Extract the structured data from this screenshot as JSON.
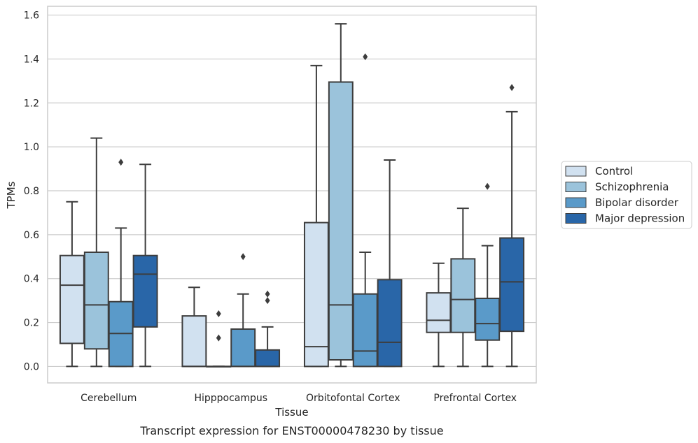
{
  "caption": "Transcript expression for ENST00000478230 by tissue",
  "chart_data": {
    "type": "box",
    "title": "",
    "xlabel": "Tissue",
    "ylabel": "TPMs",
    "ylim": [
      -0.075,
      1.64
    ],
    "yticks": [
      0.0,
      0.2,
      0.4,
      0.6,
      0.8,
      1.0,
      1.2,
      1.4,
      1.6
    ],
    "ytick_labels": [
      "0.0",
      "0.2",
      "0.4",
      "0.6",
      "0.8",
      "1.0",
      "1.2",
      "1.4",
      "1.6"
    ],
    "grid": "horizontal",
    "legend_position": "right",
    "categories": [
      "Cerebellum",
      "Hipppocampus",
      "Orbitofontal Cortex",
      "Prefrontal Cortex"
    ],
    "series": [
      {
        "name": "Control",
        "color": "#d1e1f0",
        "boxes": [
          {
            "q1": 0.105,
            "median": 0.37,
            "q3": 0.505,
            "whisker_low": 0.0,
            "whisker_high": 0.75,
            "outliers": []
          },
          {
            "q1": 0.0,
            "median": 0.0,
            "q3": 0.23,
            "whisker_low": 0.0,
            "whisker_high": 0.36,
            "outliers": []
          },
          {
            "q1": 0.0,
            "median": 0.09,
            "q3": 0.655,
            "whisker_low": 0.0,
            "whisker_high": 1.37,
            "outliers": []
          },
          {
            "q1": 0.155,
            "median": 0.21,
            "q3": 0.335,
            "whisker_low": 0.0,
            "whisker_high": 0.47,
            "outliers": []
          }
        ]
      },
      {
        "name": "Schizophrenia",
        "color": "#9bc3db",
        "boxes": [
          {
            "q1": 0.08,
            "median": 0.28,
            "q3": 0.52,
            "whisker_low": 0.0,
            "whisker_high": 1.04,
            "outliers": []
          },
          {
            "q1": 0.0,
            "median": 0.0,
            "q3": 0.0,
            "whisker_low": 0.0,
            "whisker_high": 0.0,
            "outliers": [
              0.13,
              0.24
            ]
          },
          {
            "q1": 0.03,
            "median": 0.28,
            "q3": 1.295,
            "whisker_low": 0.0,
            "whisker_high": 1.56,
            "outliers": []
          },
          {
            "q1": 0.155,
            "median": 0.305,
            "q3": 0.49,
            "whisker_low": 0.0,
            "whisker_high": 0.72,
            "outliers": []
          }
        ]
      },
      {
        "name": "Bipolar disorder",
        "color": "#5a9ac9",
        "boxes": [
          {
            "q1": 0.0,
            "median": 0.15,
            "q3": 0.295,
            "whisker_low": 0.0,
            "whisker_high": 0.63,
            "outliers": [
              0.93
            ]
          },
          {
            "q1": 0.0,
            "median": 0.0,
            "q3": 0.17,
            "whisker_low": 0.0,
            "whisker_high": 0.33,
            "outliers": [
              0.5
            ]
          },
          {
            "q1": 0.0,
            "median": 0.07,
            "q3": 0.33,
            "whisker_low": 0.0,
            "whisker_high": 0.52,
            "outliers": [
              1.41
            ]
          },
          {
            "q1": 0.12,
            "median": 0.195,
            "q3": 0.31,
            "whisker_low": 0.0,
            "whisker_high": 0.55,
            "outliers": [
              0.82
            ]
          }
        ]
      },
      {
        "name": "Major depression",
        "color": "#2966a8",
        "boxes": [
          {
            "q1": 0.18,
            "median": 0.42,
            "q3": 0.505,
            "whisker_low": 0.0,
            "whisker_high": 0.92,
            "outliers": []
          },
          {
            "q1": 0.0,
            "median": 0.0,
            "q3": 0.075,
            "whisker_low": 0.0,
            "whisker_high": 0.18,
            "outliers": [
              0.3,
              0.33
            ]
          },
          {
            "q1": 0.0,
            "median": 0.11,
            "q3": 0.395,
            "whisker_low": 0.0,
            "whisker_high": 0.94,
            "outliers": []
          },
          {
            "q1": 0.16,
            "median": 0.385,
            "q3": 0.585,
            "whisker_low": 0.0,
            "whisker_high": 1.16,
            "outliers": [
              1.27
            ]
          }
        ]
      }
    ]
  }
}
